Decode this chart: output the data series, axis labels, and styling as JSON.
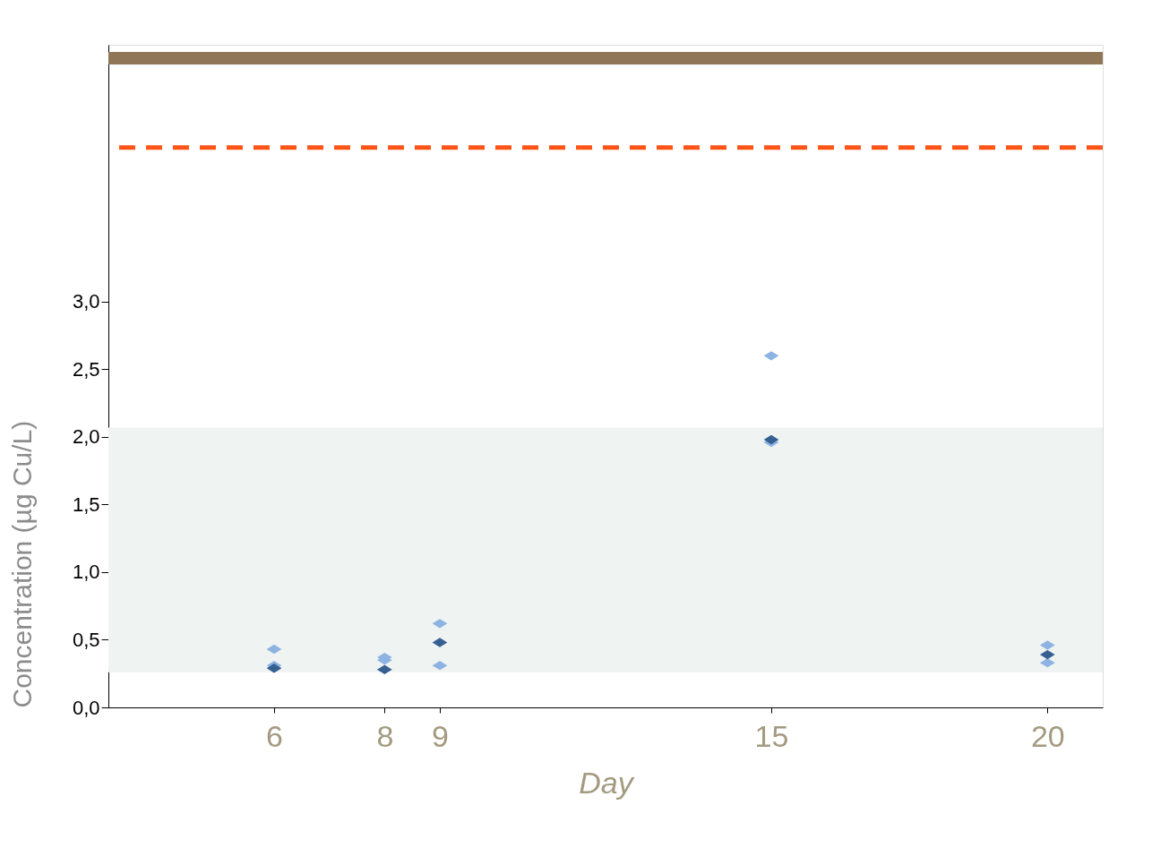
{
  "chart_data": {
    "type": "scatter",
    "xlabel": "Day",
    "ylabel": "Concentration (µg Cu/L)",
    "xlim": [
      3,
      21
    ],
    "xticks": [
      6,
      8,
      9,
      15,
      20
    ],
    "ylim": [
      0,
      4.9
    ],
    "yticks": [
      {
        "value": 0,
        "label": "0,0"
      },
      {
        "value": 0.5,
        "label": "0,5"
      },
      {
        "value": 1,
        "label": "1,0"
      },
      {
        "value": 1.5,
        "label": "1,5"
      },
      {
        "value": 2,
        "label": "2,0"
      },
      {
        "value": 2.5,
        "label": "2,5"
      },
      {
        "value": 3,
        "label": "3,0"
      }
    ],
    "series": [
      {
        "color": "#8db3e2",
        "x": [
          6,
          6,
          8,
          8,
          9,
          9,
          15,
          15,
          20,
          20
        ],
        "values": [
          0.43,
          0.31,
          0.37,
          0.35,
          0.62,
          0.31,
          2.6,
          1.96,
          0.46,
          0.33
        ]
      },
      {
        "color": "#366092",
        "x": [
          6,
          8,
          9,
          15,
          20
        ],
        "values": [
          0.29,
          0.28,
          0.48,
          1.98,
          0.39
        ]
      }
    ],
    "bands": [
      {
        "axis": "y",
        "from": 0.26,
        "to": 2.07,
        "color": "#eff3f2"
      }
    ],
    "ref_lines": [
      {
        "axis": "y",
        "value": 4.8,
        "color": "#8e7657",
        "line_style": "solid"
      },
      {
        "axis": "y",
        "value": 4.14,
        "color": "#fe5517",
        "line_style": "dashed"
      }
    ],
    "marker": "diamond",
    "grid": false
  }
}
